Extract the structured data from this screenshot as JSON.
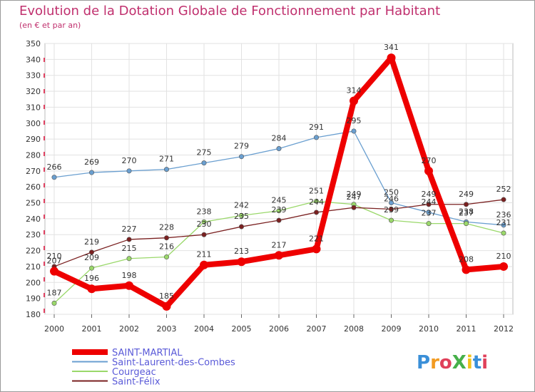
{
  "chart_data": {
    "type": "line",
    "title": "Evolution de la Dotation Globale de Fonctionnement par Habitant",
    "subtitle": "(en € et par an)",
    "x": [
      "2000",
      "2001",
      "2002",
      "2003",
      "2004",
      "2005",
      "2006",
      "2007",
      "2008",
      "2009",
      "2010",
      "2011",
      "2012"
    ],
    "ylim": [
      180,
      350
    ],
    "yticks": [
      180,
      190,
      200,
      210,
      220,
      230,
      240,
      250,
      260,
      270,
      280,
      290,
      300,
      310,
      320,
      330,
      340,
      350
    ],
    "grid": true,
    "series": [
      {
        "name": "SAINT-MARTIAL",
        "color": "#ee0000",
        "values": [
          207,
          196,
          198,
          185,
          211,
          213,
          217,
          221,
          314,
          341,
          270,
          208,
          210
        ]
      },
      {
        "name": "Saint-Laurent-des-Combes",
        "color": "#6a9fd0",
        "values": [
          266,
          269,
          270,
          271,
          275,
          279,
          284,
          291,
          295,
          250,
          244,
          238,
          236
        ]
      },
      {
        "name": "Courgeac",
        "color": "#9ad86a",
        "values": [
          187,
          209,
          215,
          216,
          238,
          242,
          245,
          251,
          249,
          239,
          237,
          237,
          231
        ]
      },
      {
        "name": "Saint-Félix",
        "color": "#7a2020",
        "values": [
          210,
          219,
          227,
          228,
          230,
          235,
          239,
          244,
          247,
          246,
          249,
          249,
          252
        ]
      }
    ]
  },
  "brand": {
    "text": "ProXiti"
  }
}
